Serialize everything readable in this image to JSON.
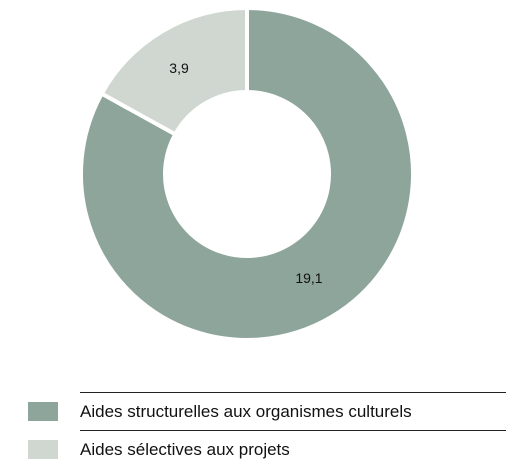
{
  "chart_data": {
    "type": "donut",
    "title": "",
    "categories": [
      "Aides structurelles aux organismes culturels",
      "Aides sélectives aux projets"
    ],
    "values": [
      19.1,
      3.9
    ],
    "value_labels": [
      "19,1",
      "3,9"
    ],
    "colors": [
      "#8ea59c",
      "#cfd7d0"
    ],
    "legend_position": "bottom-left"
  },
  "legend": {
    "items": [
      {
        "label": "Aides structurelles aux organismes culturels",
        "color": "#8ea59c"
      },
      {
        "label": "Aides sélectives aux projets",
        "color": "#cfd7d0"
      }
    ]
  }
}
